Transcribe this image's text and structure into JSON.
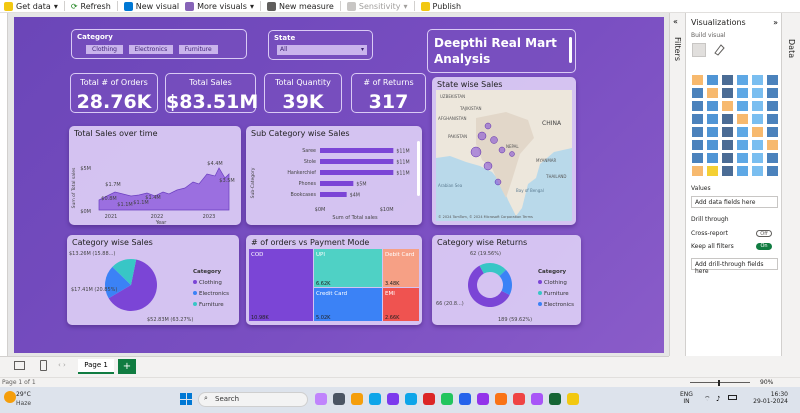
{
  "ribbon": {
    "get_data": "Get data",
    "refresh": "Refresh",
    "new_visual": "New visual",
    "more_visuals": "More visuals",
    "new_measure": "New measure",
    "sensitivity": "Sensitivity",
    "publish": "Publish"
  },
  "report": {
    "title": "Deepthi Real Mart Analysis",
    "category_slicer": {
      "title": "Category",
      "options": [
        "Clothing",
        "Electronics",
        "Furniture"
      ]
    },
    "state_slicer": {
      "title": "State",
      "value": "All"
    },
    "kpis": [
      {
        "label": "Total # of Orders",
        "value": "28.76K"
      },
      {
        "label": "Total Sales",
        "value": "$83.51M"
      },
      {
        "label": "Total Quantity",
        "value": "39K"
      },
      {
        "label": "# of Returns",
        "value": "317"
      }
    ],
    "map": {
      "title": "State wise Sales",
      "labels": [
        "UZBEKISTAN",
        "TAJIKISTAN",
        "AFGHANISTAN",
        "CHINA",
        "PAKISTAN",
        "NEPAL",
        "MYANMAR",
        "THAILAND",
        "Arabian Sea",
        "Bay of Bengal"
      ],
      "attribution": "© 2024 TomTom, © 2024 Microsoft Corporation  Terms"
    },
    "category_sales": {
      "title": "Category wise Sales",
      "legend_title": "Category",
      "labels": [
        "$13.26M (15.88...)",
        "$17.41M (20.85%)",
        "$52.83M (63.27%)"
      ]
    },
    "category_returns": {
      "title": "Category wise Returns",
      "legend_title": "Category",
      "labels": [
        "62 (19.56%)",
        "66 (20.8...)",
        "189 (59.62%)"
      ]
    }
  },
  "chart_data": [
    {
      "type": "area",
      "title": "Total Sales over time",
      "xlabel": "Year",
      "ylabel": "Sum of Total sales",
      "x_ticks": [
        "2021",
        "2022",
        "2023"
      ],
      "y_ticks": [
        "$0M",
        "$5M"
      ],
      "labels": [
        "$0.8M",
        "$1.7M",
        "$1.1M",
        "$1.1M",
        "$1.4M",
        "$4.4M",
        "$3.5M"
      ]
    },
    {
      "type": "bar",
      "title": "Sub Category wise Sales",
      "xlabel": "Sum of Total sales",
      "ylabel": "Sub-Category",
      "categories": [
        "Saree",
        "Stole",
        "Hankerchief",
        "Phones",
        "Bookcases"
      ],
      "values": [
        11,
        11,
        11,
        5,
        4
      ],
      "value_labels": [
        "$11M",
        "$11M",
        "$11M",
        "$5M",
        "$4M"
      ],
      "x_ticks": [
        "$0M",
        "$10M"
      ]
    },
    {
      "type": "pie",
      "title": "Category wise Sales",
      "categories": [
        "Clothing",
        "Electronics",
        "Furniture"
      ],
      "values": [
        52.83,
        17.41,
        13.26
      ],
      "colors": [
        "#7b45d6",
        "#3b82f6",
        "#38c6c6"
      ]
    },
    {
      "type": "heatmap",
      "title": "# of orders vs Payment Mode",
      "categories": [
        "COD",
        "UPI",
        "Debit Card",
        "Credit Card",
        "EMI"
      ],
      "values": [
        10.98,
        6.62,
        3.48,
        5.02,
        2.66
      ],
      "value_labels": [
        "10.98K",
        "6.62K",
        "3.48K",
        "5.02K",
        "2.66K"
      ],
      "colors": [
        "#7b45d6",
        "#4fd1c5",
        "#f6a085",
        "#3b82f6",
        "#ef5350"
      ]
    },
    {
      "type": "pie",
      "title": "Category wise Returns",
      "categories": [
        "Clothing",
        "Furniture",
        "Electronics"
      ],
      "values": [
        189,
        66,
        62
      ],
      "colors": [
        "#7b45d6",
        "#38c6c6",
        "#3b82f6"
      ]
    }
  ],
  "viz_panel": {
    "title": "Visualizations",
    "build": "Build visual",
    "values_label": "Values",
    "add_data": "Add data fields here",
    "drill": "Drill through",
    "cross_report": "Cross-report",
    "cross_state": "Off",
    "keep_filters": "Keep all filters",
    "keep_state": "On",
    "add_drill": "Add drill-through fields here",
    "filters_tab": "Filters",
    "data_tab": "Data"
  },
  "tabs": {
    "page1": "Page 1",
    "add": "+"
  },
  "status": {
    "page": "Page 1 of 1",
    "zoom": "90%"
  },
  "taskbar": {
    "temp": "29°C",
    "weather": "Haze",
    "search": "Search",
    "lang1": "ENG",
    "lang2": "IN",
    "time": "16:30",
    "date": "29-01-2024"
  }
}
